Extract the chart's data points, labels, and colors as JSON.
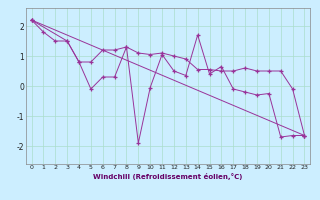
{
  "title": "",
  "xlabel": "Windchill (Refroidissement éolien,°C)",
  "ylabel": "",
  "background_color": "#cceeff",
  "grid_color": "#aaddcc",
  "line_color": "#993399",
  "xlim": [
    -0.5,
    23.5
  ],
  "ylim": [
    -2.6,
    2.6
  ],
  "xticks": [
    0,
    1,
    2,
    3,
    4,
    5,
    6,
    7,
    8,
    9,
    10,
    11,
    12,
    13,
    14,
    15,
    16,
    17,
    18,
    19,
    20,
    21,
    22,
    23
  ],
  "yticks": [
    -2,
    -1,
    0,
    1,
    2
  ],
  "series1_x": [
    0,
    1,
    2,
    3,
    4,
    5,
    6,
    7,
    8,
    9,
    10,
    11,
    12,
    13,
    14,
    15,
    16,
    17,
    18,
    19,
    20,
    21,
    22,
    23
  ],
  "series1_y": [
    2.2,
    1.8,
    1.5,
    1.5,
    0.8,
    -0.1,
    0.3,
    0.3,
    1.3,
    -1.9,
    -0.05,
    1.05,
    0.5,
    0.35,
    1.7,
    0.4,
    0.65,
    -0.1,
    -0.2,
    -0.3,
    -0.25,
    -1.7,
    -1.65,
    -1.65
  ],
  "series2_x": [
    0,
    3,
    4,
    5,
    6,
    7,
    8,
    9,
    10,
    11,
    12,
    13,
    14,
    15,
    16,
    17,
    18,
    19,
    20,
    21,
    22,
    23
  ],
  "series2_y": [
    2.2,
    1.5,
    0.8,
    0.8,
    1.2,
    1.2,
    1.3,
    1.1,
    1.05,
    1.1,
    1.0,
    0.9,
    0.55,
    0.55,
    0.5,
    0.5,
    0.6,
    0.5,
    0.5,
    0.5,
    -0.1,
    -1.65
  ],
  "series3_x": [
    0,
    23
  ],
  "series3_y": [
    2.2,
    -1.65
  ]
}
